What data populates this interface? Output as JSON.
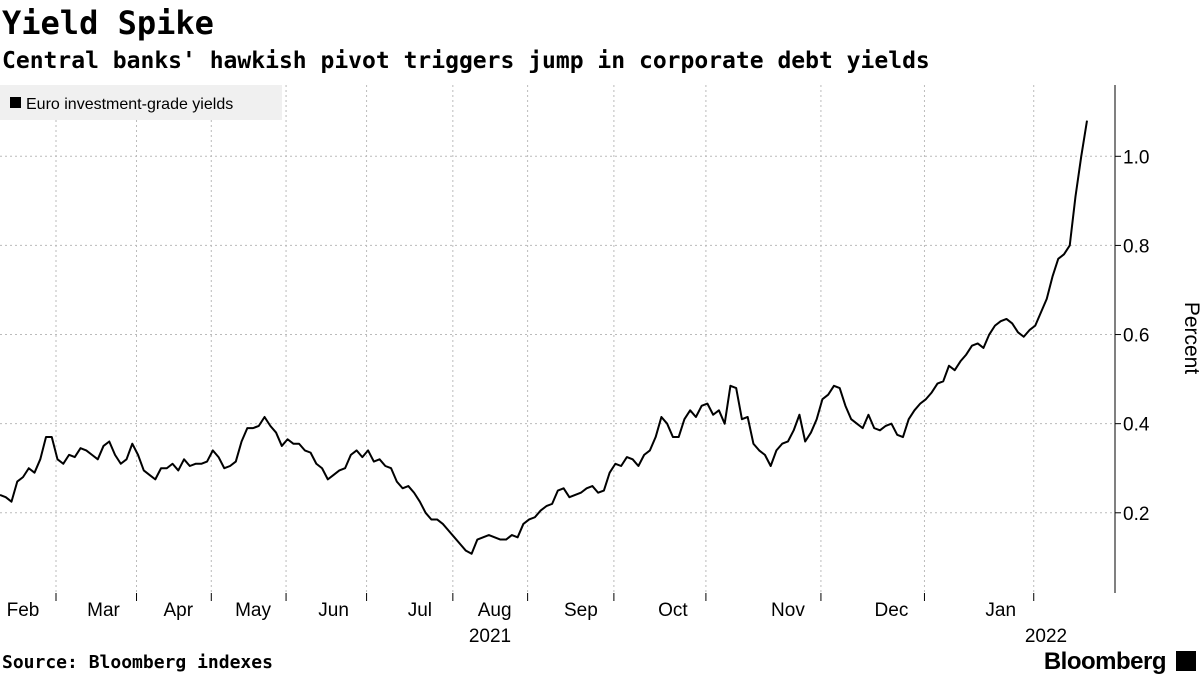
{
  "chart_data": {
    "type": "line",
    "title": "Yield Spike",
    "subtitle": "Central banks' hawkish pivot triggers jump in corporate debt yields",
    "y_label": "Percent",
    "source": "Source: Bloomberg indexes",
    "brand": "Bloomberg",
    "x_group_labels": [
      "2021",
      "2022"
    ],
    "categories": [
      null,
      null,
      null,
      null,
      "Feb",
      null,
      null,
      null,
      null,
      null,
      null,
      null,
      null,
      null,
      null,
      null,
      null,
      null,
      "Mar",
      null,
      null,
      null,
      null,
      null,
      null,
      null,
      null,
      null,
      null,
      null,
      null,
      "Apr",
      null,
      null,
      null,
      null,
      null,
      null,
      null,
      null,
      null,
      null,
      null,
      null,
      "May",
      null,
      null,
      null,
      null,
      null,
      null,
      null,
      null,
      null,
      null,
      null,
      null,
      null,
      "Jun",
      null,
      null,
      null,
      null,
      null,
      null,
      null,
      null,
      null,
      null,
      null,
      null,
      null,
      null,
      "Jul",
      null,
      null,
      null,
      null,
      null,
      null,
      null,
      null,
      null,
      null,
      null,
      null,
      "Aug",
      null,
      null,
      null,
      null,
      null,
      null,
      null,
      null,
      null,
      null,
      null,
      null,
      null,
      null,
      "Sep",
      null,
      null,
      null,
      null,
      null,
      null,
      null,
      null,
      null,
      null,
      null,
      null,
      null,
      null,
      null,
      "Oct",
      null,
      null,
      null,
      null,
      null,
      null,
      null,
      null,
      null,
      null,
      null,
      null,
      null,
      null,
      null,
      null,
      null,
      null,
      null,
      "Nov",
      null,
      null,
      null,
      null,
      null,
      null,
      null,
      null,
      null,
      null,
      null,
      null,
      null,
      null,
      null,
      null,
      null,
      "Dec",
      null,
      null,
      null,
      null,
      null,
      null,
      null,
      null,
      null,
      null,
      null,
      null,
      null,
      null,
      null,
      null,
      null,
      null,
      "Jan",
      null,
      null,
      null,
      null,
      null,
      null,
      null,
      null,
      null,
      null,
      null,
      null,
      null,
      null,
      null
    ],
    "series": [
      {
        "name": "Euro investment-grade yields",
        "color": "#000000",
        "values": [
          0.24,
          0.235,
          0.225,
          0.27,
          0.28,
          0.3,
          0.29,
          0.32,
          0.37,
          0.37,
          0.32,
          0.31,
          0.33,
          0.325,
          0.345,
          0.34,
          0.33,
          0.32,
          0.35,
          0.36,
          0.33,
          0.31,
          0.32,
          0.355,
          0.33,
          0.295,
          0.285,
          0.275,
          0.3,
          0.3,
          0.31,
          0.295,
          0.32,
          0.305,
          0.31,
          0.31,
          0.315,
          0.34,
          0.325,
          0.3,
          0.305,
          0.315,
          0.36,
          0.39,
          0.39,
          0.395,
          0.415,
          0.395,
          0.38,
          0.35,
          0.365,
          0.355,
          0.355,
          0.34,
          0.335,
          0.31,
          0.3,
          0.275,
          0.285,
          0.295,
          0.3,
          0.33,
          0.34,
          0.325,
          0.34,
          0.315,
          0.32,
          0.305,
          0.3,
          0.27,
          0.255,
          0.26,
          0.245,
          0.225,
          0.2,
          0.185,
          0.185,
          0.175,
          0.16,
          0.145,
          0.13,
          0.115,
          0.108,
          0.14,
          0.145,
          0.15,
          0.145,
          0.14,
          0.14,
          0.15,
          0.145,
          0.175,
          0.185,
          0.19,
          0.205,
          0.215,
          0.22,
          0.25,
          0.255,
          0.235,
          0.24,
          0.245,
          0.255,
          0.26,
          0.245,
          0.25,
          0.29,
          0.31,
          0.305,
          0.325,
          0.32,
          0.305,
          0.33,
          0.34,
          0.37,
          0.415,
          0.4,
          0.37,
          0.37,
          0.41,
          0.43,
          0.415,
          0.44,
          0.445,
          0.42,
          0.43,
          0.4,
          0.485,
          0.48,
          0.41,
          0.415,
          0.355,
          0.34,
          0.33,
          0.305,
          0.34,
          0.355,
          0.36,
          0.385,
          0.42,
          0.36,
          0.38,
          0.41,
          0.455,
          0.465,
          0.485,
          0.48,
          0.44,
          0.41,
          0.4,
          0.39,
          0.42,
          0.39,
          0.385,
          0.395,
          0.4,
          0.375,
          0.37,
          0.41,
          0.43,
          0.445,
          0.455,
          0.47,
          0.49,
          0.495,
          0.53,
          0.52,
          0.54,
          0.555,
          0.575,
          0.58,
          0.57,
          0.6,
          0.62,
          0.63,
          0.635,
          0.625,
          0.605,
          0.595,
          0.61,
          0.62,
          0.65,
          0.68,
          0.73,
          0.77,
          0.78,
          0.8,
          0.91,
          1.0,
          1.08
        ]
      }
    ],
    "ylim": [
      0.02,
      1.16
    ],
    "yticks": [
      0.2,
      0.4,
      0.6,
      0.8,
      {
        "value": 1,
        "label": "1.0"
      }
    ],
    "y_axis_side": "right",
    "grid": true,
    "legend": "top-left"
  }
}
